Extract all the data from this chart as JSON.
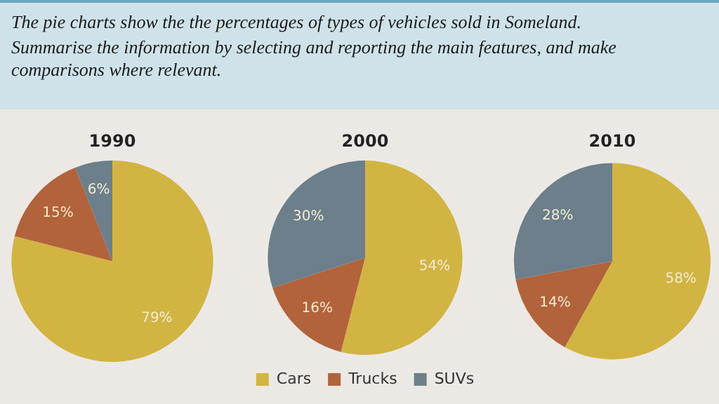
{
  "chart_data": [
    {
      "type": "pie",
      "title": "1990",
      "annotations": [
        "The pie charts show the the percentages of types of vehicles sold in Someland.",
        "Summarise the information by selecting and reporting the main features, and make comparisons where relevant."
      ],
      "categories": [
        null,
        null,
        null
      ],
      "values": [
        79,
        15,
        6
      ],
      "value_labels": [
        "79%",
        "15%",
        "6%"
      ],
      "colors": [
        "#d2b443",
        "#b2633b",
        "#6d7f8b"
      ],
      "legend": false
    },
    {
      "type": "pie",
      "title": "2000",
      "categories": [
        "Cars",
        "Trucks",
        "SUVs"
      ],
      "values": [
        54,
        16,
        30
      ],
      "value_labels": [
        "54%",
        "16%",
        "30%"
      ],
      "colors": [
        "#d2b443",
        "#b2633b",
        "#6d7f8b"
      ],
      "legend": "bottom"
    },
    {
      "type": "pie",
      "title": "2010",
      "categories": [
        null,
        null,
        null
      ],
      "values": [
        58,
        14,
        28
      ],
      "value_labels": [
        "58%",
        "14%",
        "28%"
      ],
      "colors": [
        "#d2b443",
        "#b2633b",
        "#6d7f8b"
      ],
      "legend": false
    }
  ]
}
